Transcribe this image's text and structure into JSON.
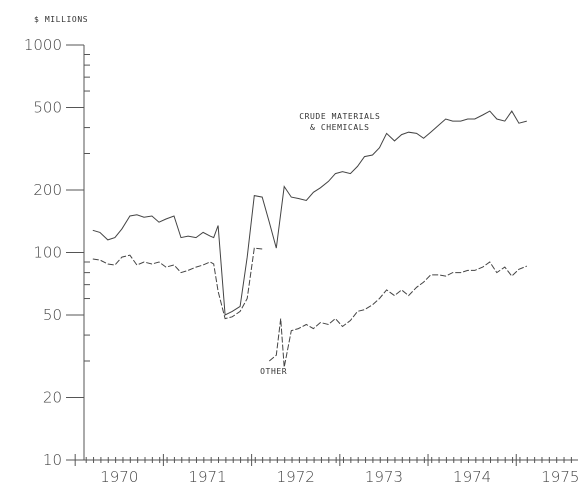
{
  "chart_data": {
    "type": "line",
    "ylabel": "$ MILLIONS",
    "y_scale": "log",
    "ylim": [
      10,
      1000
    ],
    "xlim": [
      1969.6,
      1975.2
    ],
    "y_ticks": [
      {
        "value": 10,
        "label": "10"
      },
      {
        "value": 20,
        "label": "20"
      },
      {
        "value": 50,
        "label": "50"
      },
      {
        "value": 100,
        "label": "100"
      },
      {
        "value": 200,
        "label": "200"
      },
      {
        "value": 500,
        "label": "500"
      },
      {
        "value": 1000,
        "label": "1000"
      }
    ],
    "x_ticks": [
      {
        "value": 1970,
        "label": "1970"
      },
      {
        "value": 1971,
        "label": "1971"
      },
      {
        "value": 1972,
        "label": "1972"
      },
      {
        "value": 1973,
        "label": "1973"
      },
      {
        "value": 1974,
        "label": "1974"
      },
      {
        "value": 1975,
        "label": "1975"
      }
    ],
    "annotations": [
      {
        "text_lines": [
          "CRUDE MATERIALS",
          "& CHEMICALS"
        ],
        "x": 1972.5,
        "y": 440
      },
      {
        "text_lines": [
          "OTHER"
        ],
        "x": 1971.75,
        "y": 26
      }
    ],
    "series": [
      {
        "style": "solid",
        "x": [
          1969.7,
          1969.78,
          1969.87,
          1969.95,
          1970.03,
          1970.12,
          1970.2,
          1970.28,
          1970.37,
          1970.45,
          1970.53,
          1970.62,
          1970.7,
          1970.78,
          1970.87,
          1970.95,
          1971.03,
          1971.07,
          1971.12,
          1971.2,
          1971.28,
          1971.37,
          1971.45,
          1971.53,
          1971.62,
          1971.7,
          1971.78,
          1971.87,
          1971.95,
          1972.03,
          1972.12,
          1972.2,
          1972.28,
          1972.37,
          1972.45,
          1972.53,
          1972.62,
          1972.7,
          1972.78,
          1972.87,
          1972.95,
          1973.03,
          1973.12,
          1973.2,
          1973.28,
          1973.37,
          1973.45,
          1973.53,
          1973.62,
          1973.7,
          1973.78,
          1973.87,
          1973.95,
          1974.03,
          1974.12,
          1974.2,
          1974.28,
          1974.37,
          1974.45,
          1974.53,
          1974.62
        ],
        "y": [
          128,
          125,
          115,
          118,
          130,
          150,
          152,
          148,
          150,
          140,
          145,
          150,
          118,
          120,
          118,
          125,
          120,
          118,
          135,
          50,
          52,
          55,
          95,
          188,
          185,
          140,
          105,
          208,
          185,
          182,
          178,
          195,
          205,
          220,
          240,
          245,
          240,
          260,
          290,
          295,
          320,
          375,
          345,
          370,
          380,
          375,
          355,
          380,
          410,
          440,
          430,
          430,
          440,
          440,
          460,
          480,
          440,
          430,
          480,
          420,
          430
        ]
      },
      {
        "style": "dashed",
        "x": [
          1969.7,
          1969.78,
          1969.87,
          1969.95,
          1970.03,
          1970.12,
          1970.2,
          1970.28,
          1970.37,
          1970.45,
          1970.53,
          1970.62,
          1970.7,
          1970.78,
          1970.87,
          1970.95,
          1971.03,
          1971.07,
          1971.12,
          1971.2,
          1971.28,
          1971.37,
          1971.45,
          1971.53,
          1971.62
        ],
        "y": [
          93,
          92,
          88,
          87,
          95,
          97,
          87,
          90,
          88,
          90,
          85,
          87,
          80,
          82,
          85,
          87,
          90,
          88,
          65,
          48,
          49,
          52,
          60,
          105,
          104
        ]
      },
      {
        "style": "dashed",
        "x": [
          1971.7,
          1971.78,
          1971.83,
          1971.87,
          1971.95,
          1972.03,
          1972.12,
          1972.2,
          1972.28,
          1972.37,
          1972.45,
          1972.53,
          1972.62,
          1972.7,
          1972.78,
          1972.87,
          1972.95,
          1973.03,
          1973.12,
          1973.2,
          1973.28,
          1973.37,
          1973.45,
          1973.53,
          1973.62,
          1973.7,
          1973.78,
          1973.87,
          1973.95,
          1974.03,
          1974.12,
          1974.2,
          1974.28,
          1974.37,
          1974.45,
          1974.53,
          1974.62
        ],
        "y": [
          30,
          32,
          48,
          28,
          42,
          43,
          45,
          43,
          46,
          45,
          48,
          44,
          47,
          52,
          53,
          56,
          60,
          66,
          62,
          66,
          62,
          68,
          72,
          78,
          78,
          77,
          80,
          80,
          82,
          82,
          85,
          90,
          80,
          85,
          77,
          83,
          86
        ]
      }
    ]
  }
}
